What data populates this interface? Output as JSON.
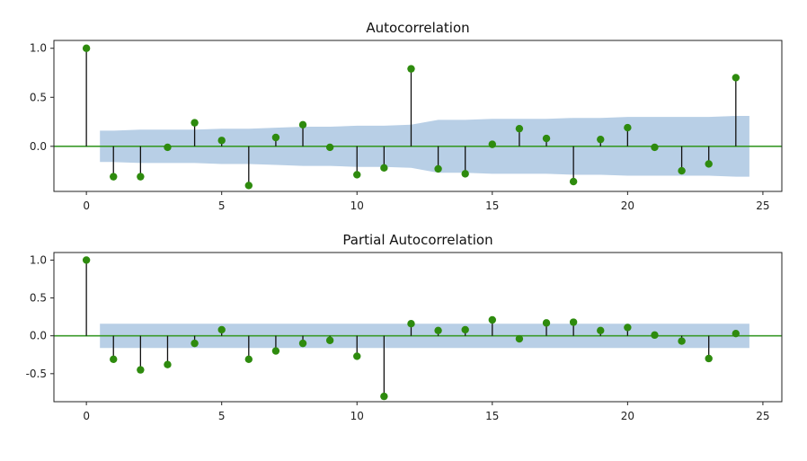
{
  "chart_data": [
    {
      "type": "stem",
      "title": "Autocorrelation",
      "xlim": [
        -1.2,
        25.7
      ],
      "ylim": [
        -0.46,
        1.08
      ],
      "xticks": [
        0,
        5,
        10,
        15,
        20,
        25
      ],
      "yticks": [
        1.0,
        0.5,
        0.0
      ],
      "ytick_labels": [
        "1.0",
        "0.5",
        "0.0"
      ],
      "x": [
        0,
        1,
        2,
        3,
        4,
        5,
        6,
        7,
        8,
        9,
        10,
        11,
        12,
        13,
        14,
        15,
        16,
        17,
        18,
        19,
        20,
        21,
        22,
        23,
        24
      ],
      "values": [
        1.0,
        -0.31,
        -0.31,
        -0.01,
        0.24,
        0.06,
        -0.4,
        0.09,
        0.22,
        -0.01,
        -0.29,
        -0.22,
        0.79,
        -0.23,
        -0.28,
        0.02,
        0.18,
        0.08,
        -0.36,
        0.07,
        0.19,
        -0.01,
        -0.25,
        -0.18,
        0.7
      ],
      "confidence_band": {
        "x": [
          0.5,
          1,
          2,
          3,
          4,
          5,
          6,
          7,
          8,
          9,
          10,
          11,
          12,
          13,
          14,
          15,
          16,
          17,
          18,
          19,
          20,
          21,
          22,
          23,
          24,
          24.5
        ],
        "upper": [
          0.16,
          0.16,
          0.17,
          0.17,
          0.17,
          0.18,
          0.18,
          0.19,
          0.2,
          0.2,
          0.21,
          0.21,
          0.22,
          0.27,
          0.27,
          0.28,
          0.28,
          0.28,
          0.29,
          0.29,
          0.3,
          0.3,
          0.3,
          0.3,
          0.31,
          0.31
        ],
        "lower": [
          -0.16,
          -0.16,
          -0.17,
          -0.17,
          -0.17,
          -0.18,
          -0.18,
          -0.19,
          -0.2,
          -0.2,
          -0.21,
          -0.21,
          -0.22,
          -0.27,
          -0.27,
          -0.28,
          -0.28,
          -0.28,
          -0.29,
          -0.29,
          -0.3,
          -0.3,
          -0.3,
          -0.3,
          -0.31,
          -0.31
        ]
      },
      "colors": {
        "marker": "#2e8b0e",
        "stem": "#111111",
        "baseline": "#3a9a2a",
        "band": "#b8cfe6"
      },
      "grid": false
    },
    {
      "type": "stem",
      "title": "Partial Autocorrelation",
      "xlim": [
        -1.2,
        25.7
      ],
      "ylim": [
        -0.87,
        1.1
      ],
      "xticks": [
        0,
        5,
        10,
        15,
        20,
        25
      ],
      "yticks": [
        1.0,
        0.5,
        0.0,
        -0.5
      ],
      "ytick_labels": [
        "1.0",
        "0.5",
        "0.0",
        "-0.5"
      ],
      "x": [
        0,
        1,
        2,
        3,
        4,
        5,
        6,
        7,
        8,
        9,
        10,
        11,
        12,
        13,
        14,
        15,
        16,
        17,
        18,
        19,
        20,
        21,
        22,
        23,
        24
      ],
      "values": [
        1.0,
        -0.31,
        -0.45,
        -0.38,
        -0.1,
        0.08,
        -0.31,
        -0.2,
        -0.1,
        -0.06,
        -0.27,
        -0.8,
        0.16,
        0.07,
        0.08,
        0.21,
        -0.04,
        0.17,
        0.18,
        0.07,
        0.11,
        0.01,
        -0.07,
        -0.3,
        0.03
      ],
      "confidence_band": {
        "x": [
          0.5,
          24.5
        ],
        "upper": [
          0.16,
          0.16
        ],
        "lower": [
          -0.16,
          -0.16
        ]
      },
      "colors": {
        "marker": "#2e8b0e",
        "stem": "#111111",
        "baseline": "#3a9a2a",
        "band": "#b8cfe6"
      },
      "grid": false
    }
  ]
}
